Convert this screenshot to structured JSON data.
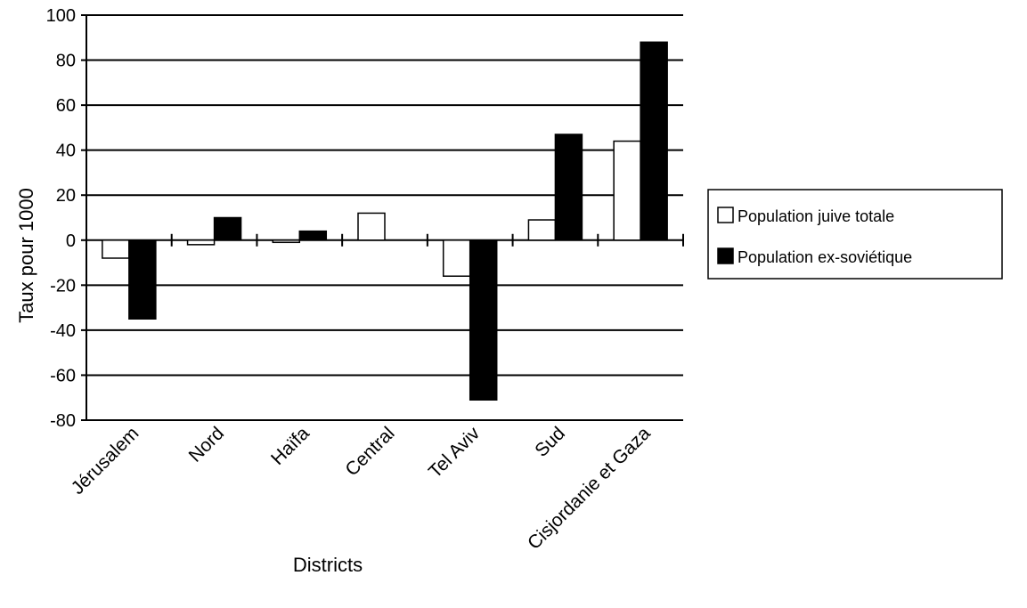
{
  "chart_data": {
    "type": "bar",
    "title": "",
    "xlabel": "Districts",
    "ylabel": "Taux pour 1000",
    "ylim": [
      -80,
      100
    ],
    "yticks": [
      100,
      80,
      60,
      40,
      20,
      0,
      -20,
      -40,
      -60,
      -80
    ],
    "grid": true,
    "legend_position": "right",
    "categories": [
      "Jérusalem",
      "Nord",
      "Haïfa",
      "Central",
      "Tel Aviv",
      "Sud",
      "Cisjordanie et Gaza"
    ],
    "series": [
      {
        "name": "Population juive totale",
        "color": "#ffffff",
        "values": [
          -8,
          -2,
          -1,
          12,
          -16,
          9,
          44
        ]
      },
      {
        "name": "Population ex-soviétique",
        "color": "#000000",
        "values": [
          -35,
          10,
          4,
          0,
          -71,
          47,
          88
        ]
      }
    ]
  }
}
